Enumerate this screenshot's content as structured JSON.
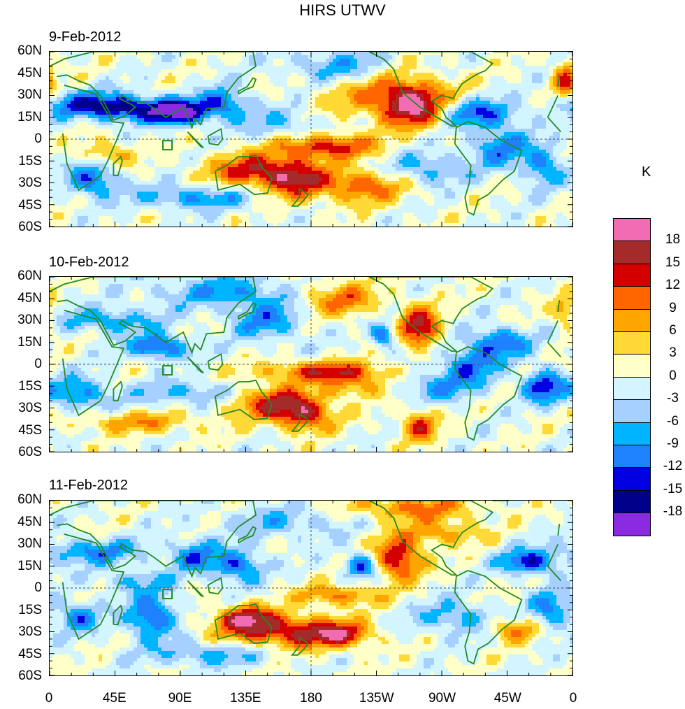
{
  "title": "HIRS UTWV",
  "panels": [
    {
      "date": "9-Feb-2012",
      "seed": 1
    },
    {
      "date": "10-Feb-2012",
      "seed": 2
    },
    {
      "date": "11-Feb-2012",
      "seed": 3
    }
  ],
  "lat_labels": [
    "60N",
    "45N",
    "30N",
    "15N",
    "0",
    "15S",
    "30S",
    "45S",
    "60S"
  ],
  "lon_labels": [
    "0",
    "45E",
    "90E",
    "135E",
    "180",
    "135W",
    "90W",
    "45W",
    "0"
  ],
  "colorbar": {
    "unit": "K",
    "levels": [
      18,
      15,
      12,
      9,
      6,
      3,
      0,
      -3,
      -6,
      -9,
      -12,
      -15,
      -18
    ],
    "colors": [
      "#f26cb4",
      "#a52a2a",
      "#d40000",
      "#ff6600",
      "#ffa500",
      "#ffd935",
      "#ffffc8",
      "#d2f5ff",
      "#a6d0ff",
      "#00b4ff",
      "#1e82ff",
      "#0000e0",
      "#00008b",
      "#8a2be2"
    ]
  },
  "map_colors": {
    "land": "#228b22",
    "grid": "#4a4a4a"
  }
}
